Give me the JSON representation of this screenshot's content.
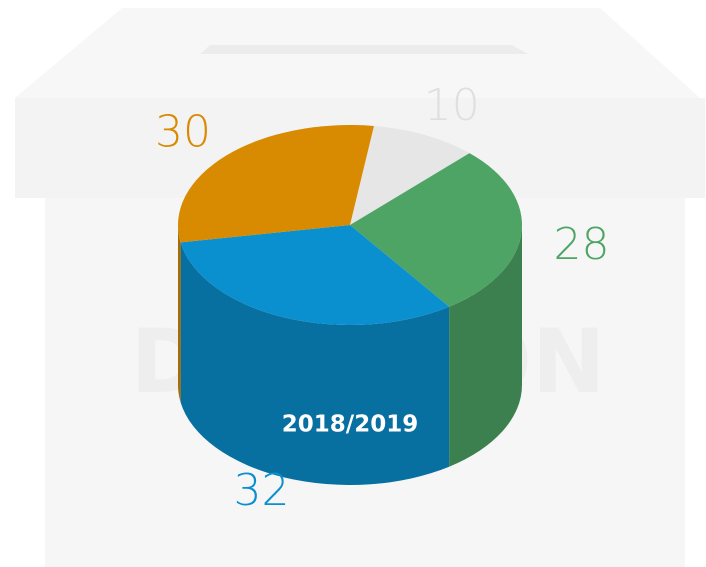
{
  "chart_data": {
    "type": "pie",
    "label": "2018/2019",
    "watermark": "DECISION",
    "values": [
      10,
      28,
      32,
      30
    ],
    "colors": [
      "#e6e6e6",
      "#4ea465",
      "#0a8fcf",
      "#d88a00"
    ]
  }
}
